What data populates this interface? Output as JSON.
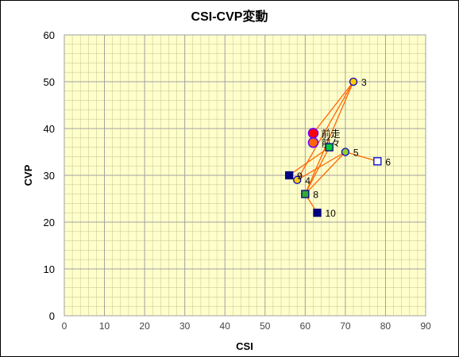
{
  "chart_data": {
    "type": "scatter",
    "title": "CSI-CVP変動",
    "xlabel": "CSI",
    "ylabel": "CVP",
    "xlim": [
      0,
      90
    ],
    "ylim": [
      0,
      60
    ],
    "xticks": [
      0,
      10,
      20,
      30,
      40,
      50,
      60,
      70,
      80,
      90
    ],
    "yticks": [
      0,
      10,
      20,
      30,
      40,
      50,
      60
    ],
    "grid": true,
    "colors": {
      "plot_bg": "#ffffcc",
      "major_grid": "#a0a0a0",
      "minor_grid": "#cccc99",
      "line": "#ff6600",
      "red_fill": "#ff0000",
      "ring_stroke": "#6600ff",
      "orange_fill": "#ff9900",
      "navy_fill": "#000080",
      "green_fill": "#00cc33",
      "olive_fill": "#99cc33",
      "yellow_fill": "#ffcc00",
      "white_fill": "#ffffff",
      "blue_stroke": "#0000cc"
    },
    "points": [
      {
        "label": "前走",
        "x": 62,
        "y": 39,
        "marker": "circle-large",
        "fill": "#ff0000",
        "stroke": "#6600ff"
      },
      {
        "label": "前々",
        "x": 62,
        "y": 37,
        "marker": "circle-large",
        "fill": "#ff6600",
        "stroke": "#6600ff"
      },
      {
        "label": "3",
        "x": 72,
        "y": 50,
        "marker": "circle",
        "fill": "#ffcc00",
        "stroke": "#0000cc"
      },
      {
        "label": "4",
        "x": 58,
        "y": 29,
        "marker": "circle",
        "fill": "#ffcc00",
        "stroke": "#0000cc"
      },
      {
        "label": "5",
        "x": 70,
        "y": 35,
        "marker": "circle",
        "fill": "#99cc33",
        "stroke": "#0000cc"
      },
      {
        "label": "6",
        "x": 78,
        "y": 33,
        "marker": "square",
        "fill": "#ffffff",
        "stroke": "#0000cc"
      },
      {
        "label": "",
        "x": 66,
        "y": 36,
        "marker": "square",
        "fill": "#00cc33",
        "stroke": "#000080"
      },
      {
        "label": "8",
        "x": 60,
        "y": 26,
        "marker": "square",
        "fill": "#33aa33",
        "stroke": "#000080"
      },
      {
        "label": "9",
        "x": 56,
        "y": 30,
        "marker": "square",
        "fill": "#000080",
        "stroke": "#000080"
      },
      {
        "label": "10",
        "x": 63,
        "y": 22,
        "marker": "square",
        "fill": "#000080",
        "stroke": "#000080"
      }
    ],
    "segments": [
      [
        62,
        39,
        72,
        50
      ],
      [
        72,
        50,
        58,
        29
      ],
      [
        72,
        50,
        60,
        26
      ],
      [
        58,
        29,
        70,
        35
      ],
      [
        70,
        35,
        78,
        33
      ],
      [
        70,
        35,
        60,
        26
      ],
      [
        56,
        30,
        66,
        36
      ],
      [
        66,
        36,
        60,
        26
      ],
      [
        60,
        26,
        63,
        22
      ]
    ]
  }
}
